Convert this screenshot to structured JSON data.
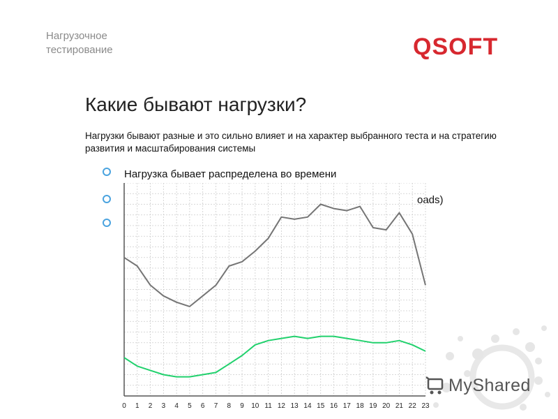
{
  "header": {
    "section_label": "Нагрузочное\nтестирование",
    "logo_text": "QSOFT"
  },
  "title": "Какие бывают нагрузки?",
  "intro": "Нагрузки бывают разные и это сильно влияет и на характер выбранного теста и на стратегию развития и масштабирования системы",
  "bullets": [
    {
      "text": "Нагрузка бывает распределена во времени"
    },
    {
      "text": "oads)"
    },
    {
      "text": ""
    }
  ],
  "watermark": {
    "text": "MyShared",
    "icon": "cart-icon"
  },
  "colors": {
    "gray_line": "#757575",
    "green_line": "#21d16d",
    "grid": "#cccccc",
    "bullet": "#4aa3df",
    "logo": "#d7282f"
  },
  "chart_data": {
    "type": "line",
    "x": [
      0,
      1,
      2,
      3,
      4,
      5,
      6,
      7,
      8,
      9,
      10,
      11,
      12,
      13,
      14,
      15,
      16,
      17,
      18,
      19,
      20,
      21,
      22,
      23
    ],
    "xticks": [
      "0",
      "1",
      "2",
      "3",
      "4",
      "5",
      "6",
      "7",
      "8",
      "9",
      "10",
      "11",
      "12",
      "13",
      "14",
      "15",
      "16",
      "17",
      "18",
      "19",
      "20",
      "21",
      "22",
      "23"
    ],
    "ylim": [
      0,
      100
    ],
    "grid": true,
    "series": [
      {
        "color": "#757575",
        "values": [
          65,
          61,
          52,
          47,
          44,
          42,
          47,
          52,
          61,
          63,
          68,
          74,
          84,
          83,
          84,
          90,
          88,
          87,
          89,
          79,
          78,
          86,
          76,
          52
        ]
      },
      {
        "color": "#21d16d",
        "values": [
          18,
          14,
          12,
          10,
          9,
          9,
          10,
          11,
          15,
          19,
          24,
          26,
          27,
          28,
          27,
          28,
          28,
          27,
          26,
          25,
          25,
          26,
          24,
          21
        ]
      }
    ]
  }
}
